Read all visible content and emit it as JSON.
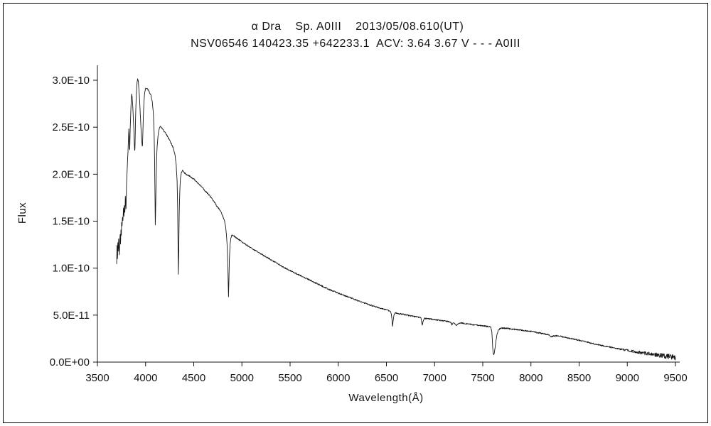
{
  "chart_data": {
    "type": "line",
    "title_line1": "α Dra    Sp. A0III    2013/05/08.610(UT)",
    "title_line2": "NSV06546 140423.35 +642233.1  ACV: 3.64 3.67 V - - - A0III",
    "xlabel": "Wavelength(Å)",
    "ylabel": "Flux",
    "xlim": [
      3500,
      9540
    ],
    "ylim": [
      0,
      3.15e-10
    ],
    "grid": false,
    "legend": "none",
    "line_color": "#161616",
    "flux_unit": 1e-10,
    "x_ticks": [
      {
        "value": 3500,
        "label": "3500"
      },
      {
        "value": 4000,
        "label": "4000"
      },
      {
        "value": 4500,
        "label": "4500"
      },
      {
        "value": 5000,
        "label": "5000"
      },
      {
        "value": 5500,
        "label": "5500"
      },
      {
        "value": 6000,
        "label": "6000"
      },
      {
        "value": 6500,
        "label": "6500"
      },
      {
        "value": 7000,
        "label": "7000"
      },
      {
        "value": 7500,
        "label": "7500"
      },
      {
        "value": 8000,
        "label": "8000"
      },
      {
        "value": 8500,
        "label": "8500"
      },
      {
        "value": 9000,
        "label": "9000"
      },
      {
        "value": 9500,
        "label": "9500"
      }
    ],
    "y_ticks": [
      {
        "value": 0,
        "label": "0.0E+00"
      },
      {
        "value": 5e-11,
        "label": "5.0E-11"
      },
      {
        "value": 1e-10,
        "label": "1.0E-10"
      },
      {
        "value": 1.5e-10,
        "label": "1.5E-10"
      },
      {
        "value": 2e-10,
        "label": "2.0E-10"
      },
      {
        "value": 2.5e-10,
        "label": "2.5E-10"
      },
      {
        "value": 3e-10,
        "label": "3.0E-10"
      }
    ],
    "points": [
      [
        3700,
        1.06
      ],
      [
        3704,
        1.22
      ],
      [
        3708,
        1.1
      ],
      [
        3712,
        1.28
      ],
      [
        3716,
        1.18
      ],
      [
        3720,
        1.32
      ],
      [
        3724,
        1.22
      ],
      [
        3728,
        1.14
      ],
      [
        3732,
        1.3
      ],
      [
        3736,
        1.38
      ],
      [
        3740,
        1.26
      ],
      [
        3744,
        1.42
      ],
      [
        3748,
        1.36
      ],
      [
        3752,
        1.5
      ],
      [
        3756,
        1.44
      ],
      [
        3760,
        1.55
      ],
      [
        3765,
        1.48
      ],
      [
        3770,
        1.62
      ],
      [
        3775,
        1.55
      ],
      [
        3780,
        1.66
      ],
      [
        3785,
        1.6
      ],
      [
        3790,
        1.74
      ],
      [
        3797,
        1.66
      ],
      [
        3802,
        1.88
      ],
      [
        3808,
        2.02
      ],
      [
        3814,
        2.16
      ],
      [
        3820,
        2.32
      ],
      [
        3826,
        2.48
      ],
      [
        3830,
        2.4
      ],
      [
        3833,
        2.28
      ],
      [
        3836,
        2.26
      ],
      [
        3840,
        2.48
      ],
      [
        3846,
        2.66
      ],
      [
        3852,
        2.8
      ],
      [
        3856,
        2.85
      ],
      [
        3860,
        2.82
      ],
      [
        3866,
        2.74
      ],
      [
        3872,
        2.62
      ],
      [
        3878,
        2.48
      ],
      [
        3883,
        2.33
      ],
      [
        3887,
        2.26
      ],
      [
        3890,
        2.27
      ],
      [
        3894,
        2.5
      ],
      [
        3899,
        2.72
      ],
      [
        3905,
        2.88
      ],
      [
        3912,
        2.98
      ],
      [
        3918,
        3.02
      ],
      [
        3924,
        2.99
      ],
      [
        3930,
        2.92
      ],
      [
        3936,
        2.82
      ],
      [
        3942,
        2.7
      ],
      [
        3948,
        2.58
      ],
      [
        3954,
        2.46
      ],
      [
        3960,
        2.36
      ],
      [
        3965,
        2.3
      ],
      [
        3968,
        2.31
      ],
      [
        3972,
        2.46
      ],
      [
        3977,
        2.62
      ],
      [
        3983,
        2.76
      ],
      [
        3990,
        2.86
      ],
      [
        4000,
        2.91
      ],
      [
        4012,
        2.92
      ],
      [
        4025,
        2.9
      ],
      [
        4040,
        2.87
      ],
      [
        4055,
        2.84
      ],
      [
        4068,
        2.78
      ],
      [
        4080,
        2.66
      ],
      [
        4088,
        2.46
      ],
      [
        4094,
        2.12
      ],
      [
        4098,
        1.76
      ],
      [
        4101,
        1.46
      ],
      [
        4104,
        1.6
      ],
      [
        4108,
        1.86
      ],
      [
        4113,
        2.1
      ],
      [
        4120,
        2.3
      ],
      [
        4130,
        2.42
      ],
      [
        4142,
        2.49
      ],
      [
        4155,
        2.51
      ],
      [
        4170,
        2.49
      ],
      [
        4190,
        2.46
      ],
      [
        4210,
        2.43
      ],
      [
        4230,
        2.4
      ],
      [
        4250,
        2.36
      ],
      [
        4270,
        2.32
      ],
      [
        4290,
        2.27
      ],
      [
        4305,
        2.21
      ],
      [
        4318,
        2.1
      ],
      [
        4327,
        1.92
      ],
      [
        4333,
        1.62
      ],
      [
        4337,
        1.25
      ],
      [
        4340,
        0.93
      ],
      [
        4344,
        1.18
      ],
      [
        4349,
        1.55
      ],
      [
        4355,
        1.82
      ],
      [
        4362,
        1.96
      ],
      [
        4372,
        2.02
      ],
      [
        4385,
        2.04
      ],
      [
        4400,
        2.02
      ],
      [
        4420,
        2.0
      ],
      [
        4445,
        1.99
      ],
      [
        4470,
        1.97
      ],
      [
        4500,
        1.95
      ],
      [
        4530,
        1.92
      ],
      [
        4560,
        1.89
      ],
      [
        4590,
        1.86
      ],
      [
        4620,
        1.82
      ],
      [
        4650,
        1.79
      ],
      [
        4680,
        1.75
      ],
      [
        4710,
        1.71
      ],
      [
        4740,
        1.66
      ],
      [
        4770,
        1.62
      ],
      [
        4795,
        1.57
      ],
      [
        4815,
        1.52
      ],
      [
        4832,
        1.44
      ],
      [
        4845,
        1.28
      ],
      [
        4853,
        1.05
      ],
      [
        4858,
        0.82
      ],
      [
        4861,
        0.69
      ],
      [
        4865,
        0.88
      ],
      [
        4870,
        1.1
      ],
      [
        4877,
        1.25
      ],
      [
        4885,
        1.32
      ],
      [
        4895,
        1.35
      ],
      [
        4910,
        1.35
      ],
      [
        4930,
        1.33
      ],
      [
        4960,
        1.31
      ],
      [
        5000,
        1.28
      ],
      [
        5050,
        1.245
      ],
      [
        5100,
        1.21
      ],
      [
        5150,
        1.18
      ],
      [
        5200,
        1.15
      ],
      [
        5250,
        1.12
      ],
      [
        5300,
        1.09
      ],
      [
        5350,
        1.06
      ],
      [
        5400,
        1.03
      ],
      [
        5450,
        1.0
      ],
      [
        5500,
        0.975
      ],
      [
        5550,
        0.95
      ],
      [
        5600,
        0.925
      ],
      [
        5650,
        0.9
      ],
      [
        5700,
        0.875
      ],
      [
        5750,
        0.85
      ],
      [
        5800,
        0.825
      ],
      [
        5850,
        0.8
      ],
      [
        5900,
        0.775
      ],
      [
        5950,
        0.755
      ],
      [
        6000,
        0.735
      ],
      [
        6050,
        0.715
      ],
      [
        6100,
        0.695
      ],
      [
        6150,
        0.675
      ],
      [
        6200,
        0.655
      ],
      [
        6250,
        0.635
      ],
      [
        6300,
        0.618
      ],
      [
        6350,
        0.6
      ],
      [
        6400,
        0.585
      ],
      [
        6450,
        0.57
      ],
      [
        6500,
        0.556
      ],
      [
        6520,
        0.55
      ],
      [
        6540,
        0.543
      ],
      [
        6550,
        0.52
      ],
      [
        6557,
        0.46
      ],
      [
        6563,
        0.375
      ],
      [
        6570,
        0.44
      ],
      [
        6578,
        0.5
      ],
      [
        6590,
        0.525
      ],
      [
        6610,
        0.522
      ],
      [
        6640,
        0.515
      ],
      [
        6680,
        0.507
      ],
      [
        6720,
        0.498
      ],
      [
        6760,
        0.49
      ],
      [
        6800,
        0.483
      ],
      [
        6840,
        0.477
      ],
      [
        6858,
        0.47
      ],
      [
        6866,
        0.42
      ],
      [
        6872,
        0.39
      ],
      [
        6878,
        0.42
      ],
      [
        6886,
        0.45
      ],
      [
        6895,
        0.465
      ],
      [
        6920,
        0.463
      ],
      [
        6950,
        0.459
      ],
      [
        7000,
        0.452
      ],
      [
        7050,
        0.445
      ],
      [
        7100,
        0.438
      ],
      [
        7140,
        0.432
      ],
      [
        7165,
        0.428
      ],
      [
        7180,
        0.4
      ],
      [
        7195,
        0.415
      ],
      [
        7210,
        0.405
      ],
      [
        7225,
        0.392
      ],
      [
        7240,
        0.408
      ],
      [
        7260,
        0.418
      ],
      [
        7290,
        0.414
      ],
      [
        7330,
        0.408
      ],
      [
        7370,
        0.403
      ],
      [
        7410,
        0.398
      ],
      [
        7450,
        0.393
      ],
      [
        7490,
        0.388
      ],
      [
        7530,
        0.383
      ],
      [
        7560,
        0.378
      ],
      [
        7585,
        0.37
      ],
      [
        7594,
        0.32
      ],
      [
        7602,
        0.18
      ],
      [
        7608,
        0.09
      ],
      [
        7615,
        0.075
      ],
      [
        7622,
        0.11
      ],
      [
        7630,
        0.17
      ],
      [
        7640,
        0.25
      ],
      [
        7652,
        0.31
      ],
      [
        7665,
        0.345
      ],
      [
        7680,
        0.357
      ],
      [
        7700,
        0.362
      ],
      [
        7730,
        0.36
      ],
      [
        7760,
        0.357
      ],
      [
        7800,
        0.352
      ],
      [
        7840,
        0.347
      ],
      [
        7880,
        0.342
      ],
      [
        7920,
        0.337
      ],
      [
        7960,
        0.332
      ],
      [
        8000,
        0.327
      ],
      [
        8040,
        0.32
      ],
      [
        8080,
        0.312
      ],
      [
        8120,
        0.304
      ],
      [
        8160,
        0.296
      ],
      [
        8190,
        0.287
      ],
      [
        8210,
        0.272
      ],
      [
        8230,
        0.278
      ],
      [
        8260,
        0.281
      ],
      [
        8300,
        0.276
      ],
      [
        8340,
        0.268
      ],
      [
        8380,
        0.259
      ],
      [
        8420,
        0.25
      ],
      [
        8460,
        0.241
      ],
      [
        8500,
        0.232
      ],
      [
        8540,
        0.222
      ],
      [
        8580,
        0.212
      ],
      [
        8620,
        0.203
      ],
      [
        8660,
        0.194
      ],
      [
        8700,
        0.185
      ],
      [
        8740,
        0.176
      ],
      [
        8780,
        0.168
      ],
      [
        8820,
        0.16
      ],
      [
        8860,
        0.152
      ],
      [
        8900,
        0.144
      ],
      [
        8940,
        0.136
      ],
      [
        8980,
        0.129
      ],
      [
        9020,
        0.122
      ],
      [
        9060,
        0.115
      ],
      [
        9100,
        0.108
      ],
      [
        9140,
        0.101
      ],
      [
        9180,
        0.095
      ],
      [
        9220,
        0.089
      ],
      [
        9260,
        0.083
      ],
      [
        9300,
        0.077
      ],
      [
        9340,
        0.071
      ],
      [
        9380,
        0.066
      ],
      [
        9420,
        0.06
      ],
      [
        9460,
        0.055
      ],
      [
        9500,
        0.05
      ]
    ]
  }
}
